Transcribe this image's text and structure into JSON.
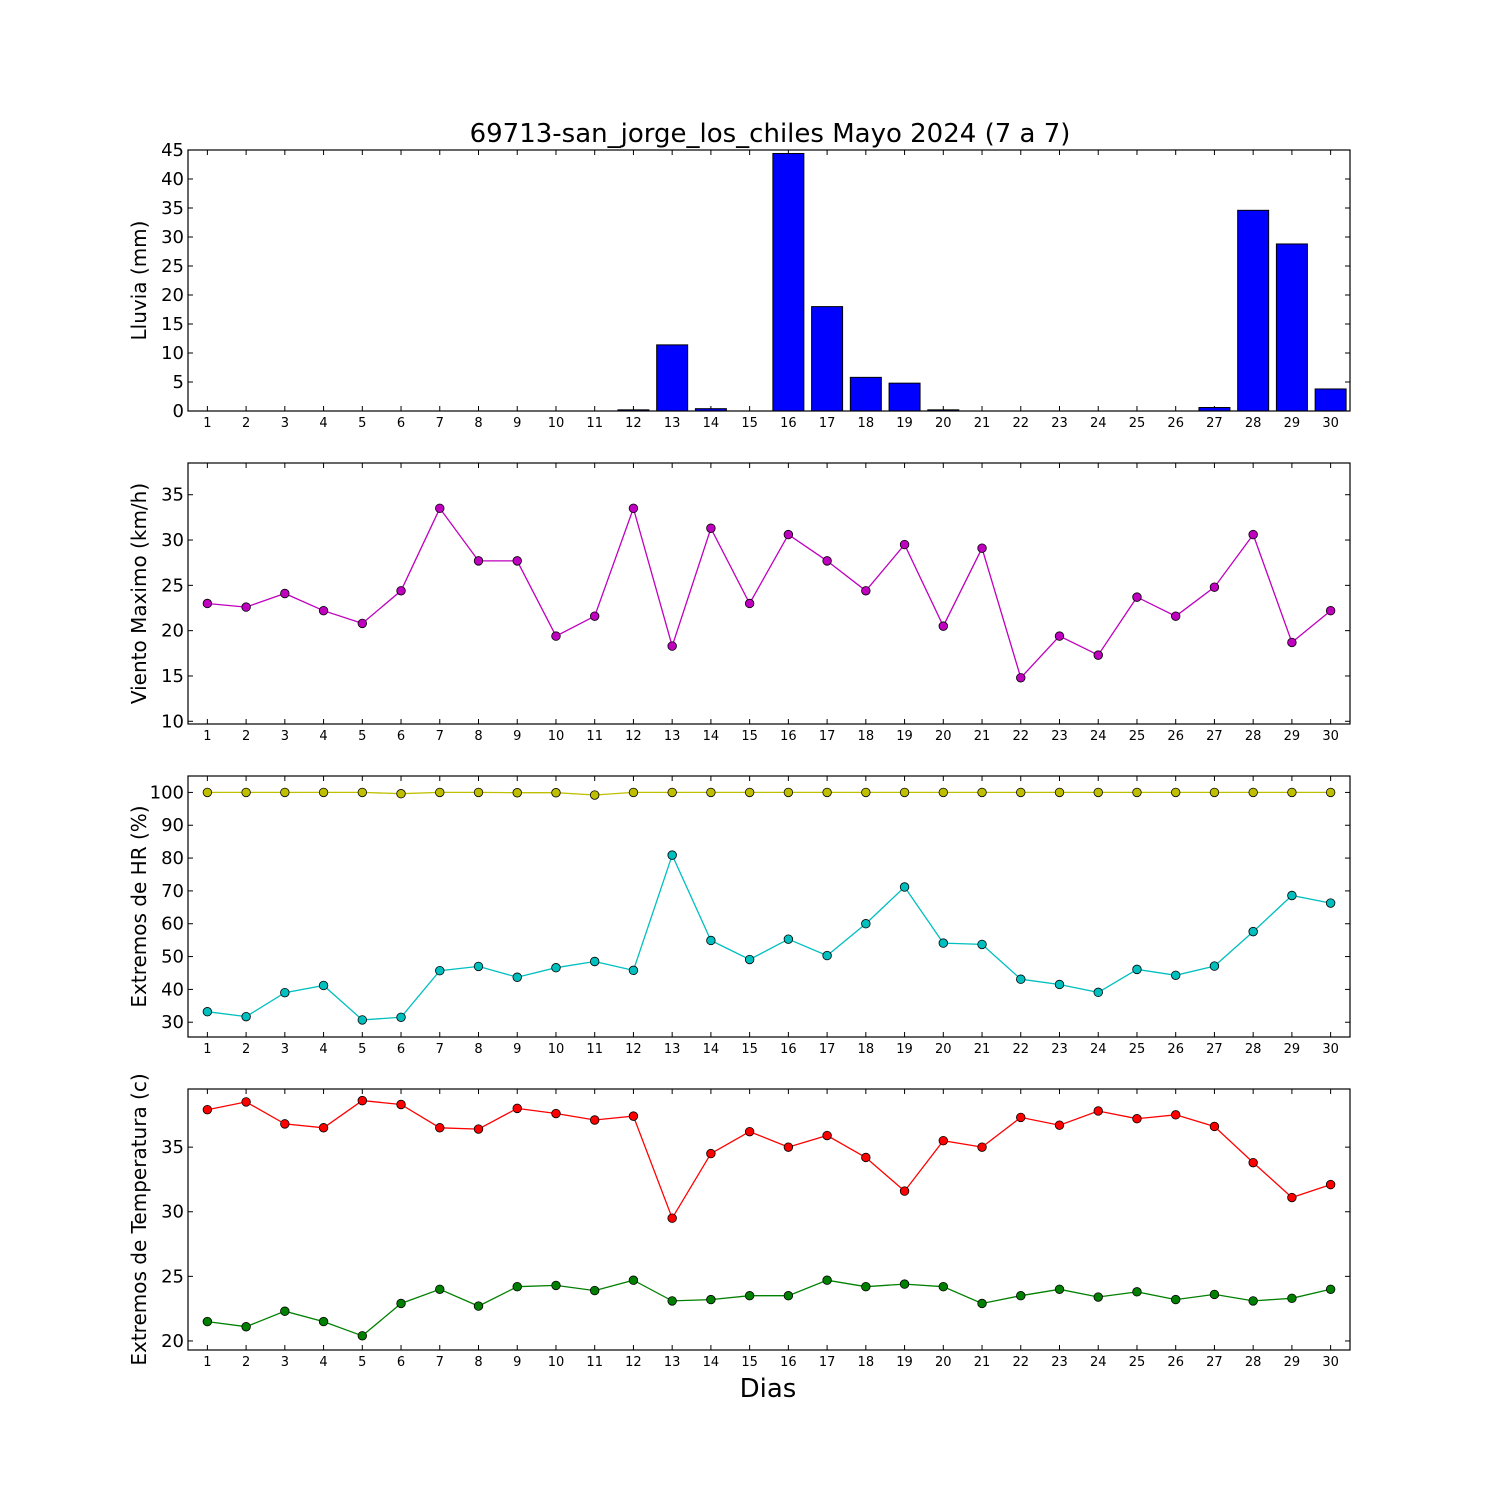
{
  "chart_data": {
    "title": "69713-san_jorge_los_chiles Mayo 2024  (7 a 7)",
    "xlabel": "Dias",
    "days": [
      1,
      2,
      3,
      4,
      5,
      6,
      7,
      8,
      9,
      10,
      11,
      12,
      13,
      14,
      15,
      16,
      17,
      18,
      19,
      20,
      21,
      22,
      23,
      24,
      25,
      26,
      27,
      28,
      29,
      30
    ],
    "panels": [
      {
        "type": "bar",
        "ylabel": "Lluvia (mm)",
        "ylim": [
          0,
          45
        ],
        "yticks": [
          0,
          5,
          10,
          15,
          20,
          25,
          30,
          35,
          40,
          45
        ],
        "series": [
          {
            "color": "#0000ff",
            "values": [
              0,
              0,
              0,
              0,
              0,
              0,
              0,
              0,
              0,
              0,
              0,
              0.2,
              11.4,
              0.4,
              0,
              44.4,
              18,
              5.8,
              4.8,
              0.2,
              0,
              0,
              0,
              0,
              0,
              0,
              0.6,
              34.6,
              28.8,
              3.8
            ]
          }
        ]
      },
      {
        "type": "line",
        "ylabel": "Viento Maximo (km/h)",
        "ylim": [
          9.7,
          38.5
        ],
        "yticks": [
          10,
          15,
          20,
          25,
          30,
          35
        ],
        "series": [
          {
            "color": "#bf00bf",
            "values": [
              23,
              22.6,
              24.1,
              22.2,
              20.8,
              24.4,
              33.5,
              27.7,
              27.7,
              19.4,
              21.6,
              33.5,
              18.3,
              31.3,
              23,
              30.6,
              27.7,
              24.4,
              29.5,
              20.5,
              29.1,
              14.8,
              19.4,
              17.3,
              23.7,
              21.6,
              24.8,
              30.6,
              18.7,
              22.2
            ]
          }
        ]
      },
      {
        "type": "line",
        "ylabel": "Extremos de HR (%)",
        "ylim": [
          25.5,
          105
        ],
        "yticks": [
          30,
          40,
          50,
          60,
          70,
          80,
          90,
          100
        ],
        "series": [
          {
            "color": "#bfbf00",
            "values": [
              100,
              100,
              100,
              100,
              100,
              99.6,
              100,
              100,
              99.9,
              99.9,
              99.2,
              100,
              100,
              100,
              100,
              100,
              100,
              100,
              100,
              100,
              100,
              100,
              100,
              100,
              100,
              100,
              100,
              100,
              100,
              100
            ]
          },
          {
            "color": "#00bfbf",
            "values": [
              33.2,
              31.7,
              39,
              41.2,
              30.7,
              31.5,
              45.7,
              47,
              43.7,
              46.6,
              48.5,
              45.8,
              80.9,
              54.9,
              49.1,
              55.3,
              50.3,
              60,
              71.2,
              54.1,
              53.7,
              43.1,
              41.5,
              39.1,
              46.1,
              44.3,
              47.1,
              57.6,
              68.6,
              66.3
            ]
          }
        ]
      },
      {
        "type": "line",
        "ylabel": "Extremos de Temperatura (c)",
        "ylim": [
          19.3,
          39.5
        ],
        "yticks": [
          20,
          25,
          30,
          35
        ],
        "tickformat": "int",
        "series": [
          {
            "color": "#ff0000",
            "values": [
              37.9,
              38.5,
              36.8,
              36.5,
              38.6,
              38.3,
              36.5,
              36.4,
              38,
              37.6,
              37.1,
              37.4,
              29.5,
              34.5,
              36.2,
              35,
              35.9,
              34.2,
              31.6,
              35.5,
              35,
              37.3,
              36.7,
              37.8,
              37.2,
              37.5,
              36.6,
              33.8,
              31.1,
              32.1
            ]
          },
          {
            "color": "#008000",
            "values": [
              21.5,
              21.1,
              22.3,
              21.5,
              20.4,
              22.9,
              24,
              22.7,
              24.2,
              24.3,
              23.9,
              24.7,
              23.1,
              23.2,
              23.5,
              23.5,
              24.7,
              24.2,
              24.4,
              24.2,
              22.9,
              23.5,
              24,
              23.4,
              23.8,
              23.2,
              23.6,
              23.1,
              23.3,
              24
            ]
          }
        ]
      }
    ]
  }
}
